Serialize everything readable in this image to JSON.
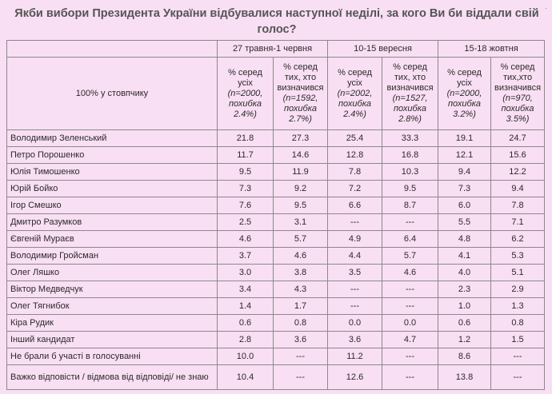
{
  "title": "Якби вибори Президента України відбувалися наступної неділі, за кого Ви би віддали свій голос?",
  "corner_label": "100% у стовпчику",
  "periods": [
    "27 травня-1 червня",
    "10-15 вересня",
    "15-18 жовтня"
  ],
  "subheaders": [
    {
      "l1": "% серед",
      "l2": "усіх",
      "l3": "(n=2000,",
      "l4": "похибка",
      "l5": "2.4%)"
    },
    {
      "l1": "% серед",
      "l2": "тих, хто",
      "l3": "визначився",
      "l4": "(n=1592,",
      "l5": "похибка",
      "l6": "2.7%)"
    },
    {
      "l1": "% серед",
      "l2": "усіх",
      "l3": "(n=2002,",
      "l4": "похибка",
      "l5": "2.4%)"
    },
    {
      "l1": "% серед",
      "l2": "тих, хто",
      "l3": "визначився",
      "l4": "(n=1527,",
      "l5": "похибка",
      "l6": "2.8%)"
    },
    {
      "l1": "% серед",
      "l2": "усіх",
      "l3": "(n=2000,",
      "l4": "похибка",
      "l5": "3.2%)"
    },
    {
      "l1": "% серед",
      "l2": "тих,хто",
      "l3": "визначився",
      "l4": "(n=970,",
      "l5": "похибка",
      "l6": "3.5%)"
    }
  ],
  "rows": [
    {
      "name": "Володимир Зеленський",
      "v": [
        "21.8",
        "27.3",
        "25.4",
        "33.3",
        "19.1",
        "24.7"
      ]
    },
    {
      "name": "Петро Порошенко",
      "v": [
        "11.7",
        "14.6",
        "12.8",
        "16.8",
        "12.1",
        "15.6"
      ]
    },
    {
      "name": "Юлія Тимошенко",
      "v": [
        "9.5",
        "11.9",
        "7.8",
        "10.3",
        "9.4",
        "12.2"
      ]
    },
    {
      "name": "Юрій Бойко",
      "v": [
        "7.3",
        "9.2",
        "7.2",
        "9.5",
        "7.3",
        "9.4"
      ]
    },
    {
      "name": "Ігор Смешко",
      "v": [
        "7.6",
        "9.5",
        "6.6",
        "8.7",
        "6.0",
        "7.8"
      ]
    },
    {
      "name": "Дмитро Разумков",
      "v": [
        "2.5",
        "3.1",
        "---",
        "---",
        "5.5",
        "7.1"
      ]
    },
    {
      "name": "Євгеній Мураєв",
      "v": [
        "4.6",
        "5.7",
        "4.9",
        "6.4",
        "4.8",
        "6.2"
      ]
    },
    {
      "name": "Володимир Гройсман",
      "v": [
        "3.7",
        "4.6",
        "4.4",
        "5.7",
        "4.1",
        "5.3"
      ]
    },
    {
      "name": "Олег Ляшко",
      "v": [
        "3.0",
        "3.8",
        "3.5",
        "4.6",
        "4.0",
        "5.1"
      ]
    },
    {
      "name": "Віктор Медведчук",
      "v": [
        "3.4",
        "4.3",
        "---",
        "---",
        "2.3",
        "2.9"
      ]
    },
    {
      "name": "Олег Тягнибок",
      "v": [
        "1.4",
        "1.7",
        "---",
        "---",
        "1.0",
        "1.3"
      ]
    },
    {
      "name": "Кіра Рудик",
      "v": [
        "0.6",
        "0.8",
        "0.0",
        "0.0",
        "0.6",
        "0.8"
      ]
    },
    {
      "name": "Інший кандидат",
      "v": [
        "2.8",
        "3.6",
        "3.6",
        "4.7",
        "1.2",
        "1.5"
      ]
    },
    {
      "name": "Не брали б участі в голосуванні",
      "v": [
        "10.0",
        "---",
        "11.2",
        "---",
        "8.6",
        "---"
      ]
    },
    {
      "name": "Важко відповісти / відмова від відповіді/ не знаю",
      "v": [
        "10.4",
        "---",
        "12.6",
        "---",
        "13.8",
        "---"
      ]
    }
  ]
}
